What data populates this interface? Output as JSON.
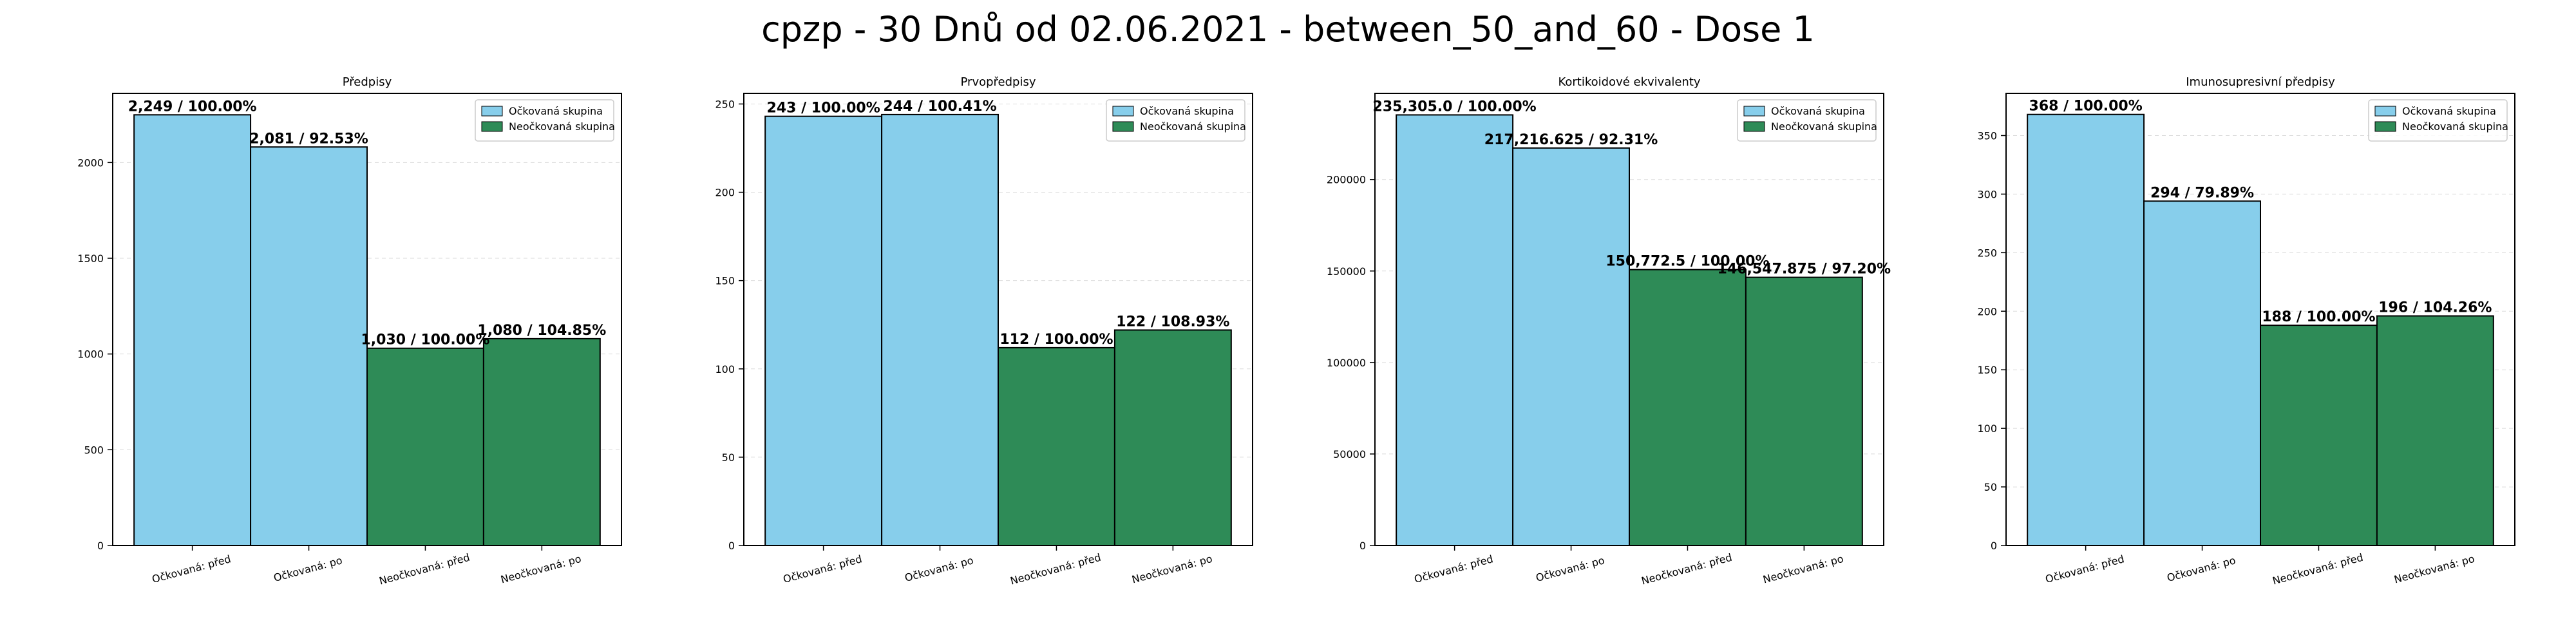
{
  "suptitle": "cpzp - 30 Dnů od 02.06.2021 - between_50_and_60 - Dose 1",
  "colors": {
    "vaccinated": "#87ceeb",
    "unvaccinated": "#2e8b57",
    "edge": "#000000"
  },
  "legend": [
    "Očkovaná skupina",
    "Neočkovaná skupina"
  ],
  "chart_data": [
    {
      "type": "bar",
      "title": "Předpisy",
      "categories": [
        "Očkovaná: před",
        "Očkovaná: po",
        "Neočkovaná: před",
        "Neočkovaná: po"
      ],
      "values": [
        2249,
        2081,
        1030,
        1080
      ],
      "bar_labels": [
        "2,249 / 100.00%",
        "2,081 / 92.53%",
        "1,030 / 100.00%",
        "1,080 / 104.85%"
      ],
      "bar_colors": [
        "#87ceeb",
        "#87ceeb",
        "#2e8b57",
        "#2e8b57"
      ],
      "ylim": [
        0,
        2361
      ],
      "yticks": [
        0,
        500,
        1000,
        1500,
        2000
      ],
      "ytick_labels": [
        "0",
        "500",
        "1000",
        "1500",
        "2000"
      ],
      "grid": true,
      "legend_position": "top-right"
    },
    {
      "type": "bar",
      "title": "Prvopředpisy",
      "categories": [
        "Očkovaná: před",
        "Očkovaná: po",
        "Neočkovaná: před",
        "Neočkovaná: po"
      ],
      "values": [
        243,
        244,
        112,
        122
      ],
      "bar_labels": [
        "243 / 100.00%",
        "244 / 100.41%",
        "112 / 100.00%",
        "122 / 108.93%"
      ],
      "bar_colors": [
        "#87ceeb",
        "#87ceeb",
        "#2e8b57",
        "#2e8b57"
      ],
      "ylim": [
        0,
        256
      ],
      "yticks": [
        0,
        50,
        100,
        150,
        200,
        250
      ],
      "ytick_labels": [
        "0",
        "50",
        "100",
        "150",
        "200",
        "250"
      ],
      "grid": true,
      "legend_position": "top-right"
    },
    {
      "type": "bar",
      "title": "Kortikoidové ekvivalenty",
      "categories": [
        "Očkovaná: před",
        "Očkovaná: po",
        "Neočkovaná: před",
        "Neočkovaná: po"
      ],
      "values": [
        235305.0,
        217216.625,
        150772.5,
        146547.875
      ],
      "bar_labels": [
        "235,305.0 / 100.00%",
        "217,216.625 / 92.31%",
        "150,772.5 / 100.00%",
        "146,547.875 / 97.20%"
      ],
      "bar_colors": [
        "#87ceeb",
        "#87ceeb",
        "#2e8b57",
        "#2e8b57"
      ],
      "ylim": [
        0,
        247070
      ],
      "yticks": [
        0,
        50000,
        100000,
        150000,
        200000
      ],
      "ytick_labels": [
        "0",
        "50000",
        "100000",
        "150000",
        "200000"
      ],
      "grid": true,
      "legend_position": "top-right"
    },
    {
      "type": "bar",
      "title": "Imunosupresivní předpisy",
      "categories": [
        "Očkovaná: před",
        "Očkovaná: po",
        "Neočkovaná: před",
        "Neočkovaná: po"
      ],
      "values": [
        368,
        294,
        188,
        196
      ],
      "bar_labels": [
        "368 / 100.00%",
        "294 / 79.89%",
        "188 / 100.00%",
        "196 / 104.26%"
      ],
      "bar_colors": [
        "#87ceeb",
        "#87ceeb",
        "#2e8b57",
        "#2e8b57"
      ],
      "ylim": [
        0,
        386
      ],
      "yticks": [
        0,
        50,
        100,
        150,
        200,
        250,
        300,
        350
      ],
      "ytick_labels": [
        "0",
        "50",
        "100",
        "150",
        "200",
        "250",
        "300",
        "350"
      ],
      "grid": true,
      "legend_position": "top-right"
    }
  ]
}
